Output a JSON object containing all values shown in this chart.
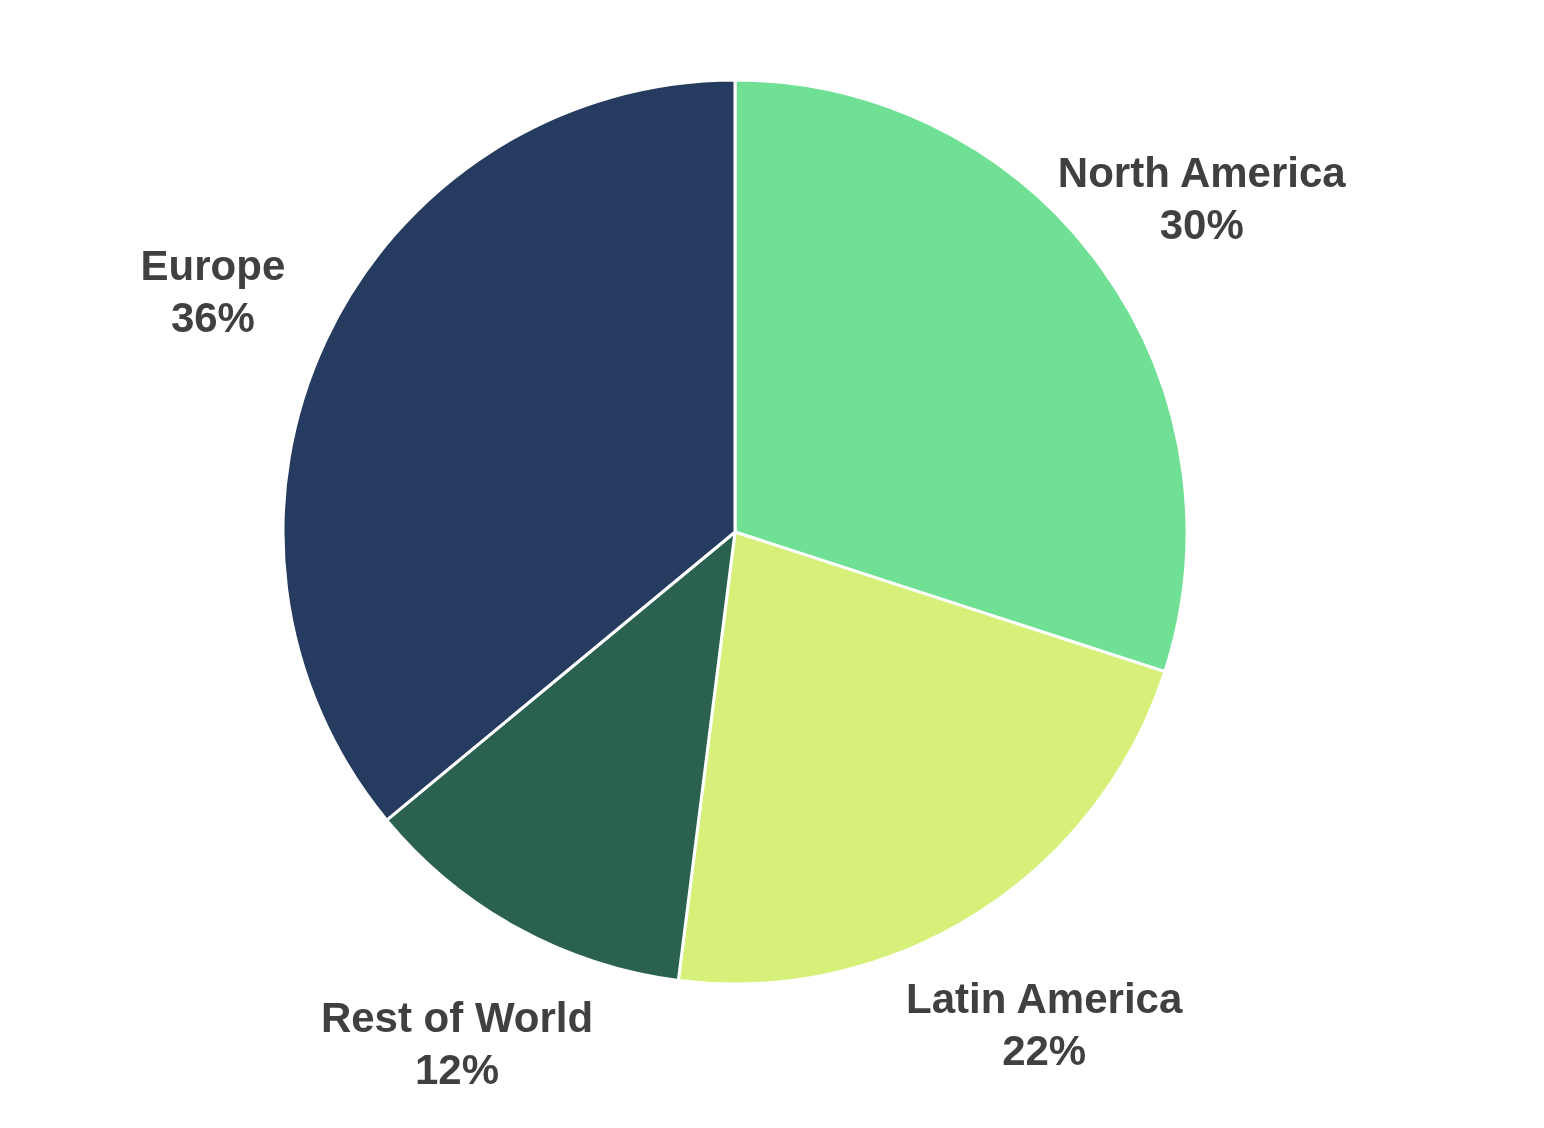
{
  "chart_data": {
    "type": "pie",
    "categories": [
      "North America",
      "Latin America",
      "Rest of World",
      "Europe"
    ],
    "values": [
      30,
      22,
      12,
      36
    ],
    "value_labels": [
      "30%",
      "22%",
      "12%",
      "36%"
    ],
    "colors": [
      "#70e094",
      "#d6f07a",
      "#2a6150",
      "#253b60"
    ],
    "legend": false
  }
}
